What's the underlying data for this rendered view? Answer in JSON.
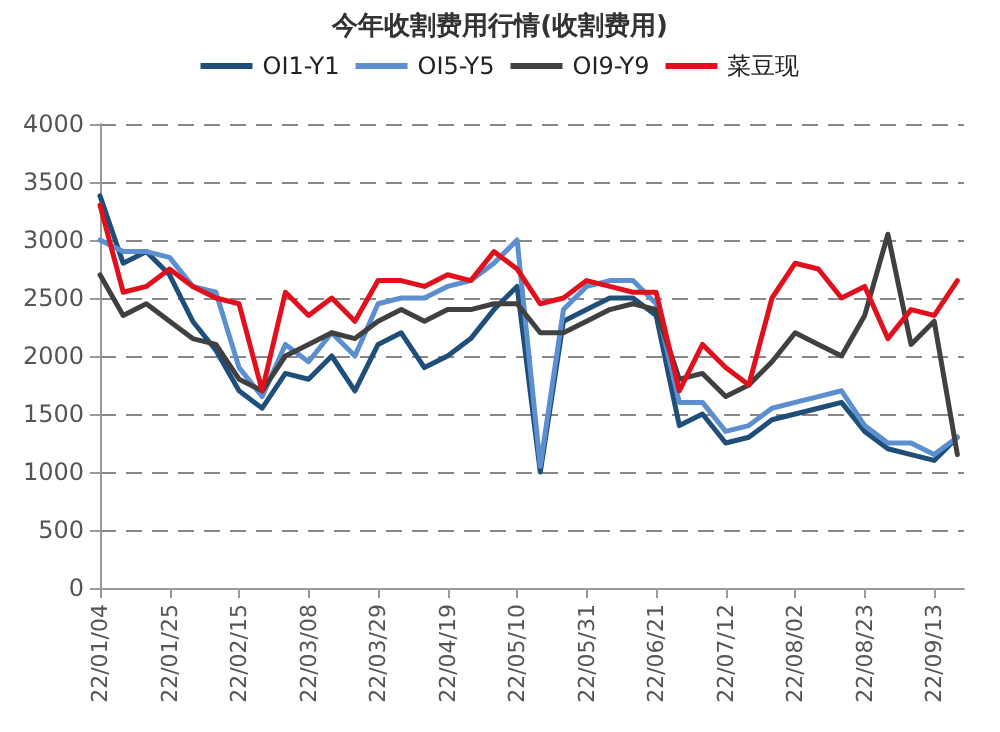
{
  "chart_data": {
    "type": "line",
    "title": "今年收割费用行情(收割费用)",
    "x": [
      "--01-04",
      "--01-11",
      "--01-18",
      "--01-25",
      "--02-01",
      "--02-08",
      "--02-15",
      "--02-22",
      "--03-01",
      "--03-08",
      "--03-15",
      "--03-22",
      "--03-29",
      "--04-05",
      "--04-12",
      "--04-19",
      "--04-26",
      "--05-03",
      "--05-10",
      "--05-17",
      "--05-24",
      "--05-31",
      "--06-07",
      "--06-14",
      "--06-21",
      "--06-28",
      "--07-05",
      "--07-12",
      "--07-19",
      "--07-26",
      "--08-02",
      "--08-09",
      "--08-16",
      "--08-23",
      "--08-30",
      "--09-06",
      "--09-13",
      "--09-20"
    ],
    "series": [
      {
        "name": "OI1-Y1",
        "color": "#1f4e79",
        "values": [
          3380,
          2800,
          2900,
          2700,
          2300,
          2050,
          1700,
          1550,
          1850,
          1800,
          2000,
          1700,
          2100,
          2200,
          1900,
          2000,
          2150,
          2400,
          2600,
          1000,
          2300,
          2400,
          2500,
          2500,
          2350,
          1400,
          1500,
          1250,
          1300,
          1450,
          1500,
          1550,
          1600,
          1350,
          1200,
          1150,
          1100,
          1300
        ]
      },
      {
        "name": "OI5-Y5",
        "color": "#5b8fd0",
        "values": [
          3000,
          2900,
          2900,
          2850,
          2600,
          2550,
          1900,
          1650,
          2100,
          1950,
          2200,
          2000,
          2450,
          2500,
          2500,
          2600,
          2650,
          2800,
          3000,
          1050,
          2400,
          2600,
          2650,
          2650,
          2450,
          1600,
          1600,
          1350,
          1400,
          1550,
          1600,
          1650,
          1700,
          1400,
          1250,
          1250,
          1150,
          1300
        ]
      },
      {
        "name": "OI9-Y9",
        "color": "#404040",
        "values": [
          2700,
          2350,
          2450,
          2300,
          2150,
          2100,
          1800,
          1700,
          2000,
          2100,
          2200,
          2150,
          2300,
          2400,
          2300,
          2400,
          2400,
          2450,
          2450,
          2200,
          2200,
          2300,
          2400,
          2450,
          2400,
          1800,
          1850,
          1650,
          1750,
          1950,
          2200,
          2100,
          2000,
          2350,
          3050,
          2100,
          2300,
          1150
        ]
      },
      {
        "name": "菜豆现",
        "color": "#e0101c",
        "values": [
          3300,
          2550,
          2600,
          2750,
          2600,
          2500,
          2450,
          1700,
          2550,
          2350,
          2500,
          2300,
          2650,
          2650,
          2600,
          2700,
          2650,
          2900,
          2750,
          2450,
          2500,
          2650,
          2600,
          2550,
          2550,
          1700,
          2100,
          1900,
          1750,
          2500,
          2800,
          2750,
          2500,
          2600,
          2150,
          2400,
          2350,
          2650
        ]
      }
    ],
    "xlim": [
      "--01-04",
      "--09-22"
    ],
    "xticks": [
      {
        "value": "--01-04",
        "label": "22/01/04"
      },
      {
        "value": "--01-25",
        "label": "22/01/25"
      },
      {
        "value": "--02-15",
        "label": "22/02/15"
      },
      {
        "value": "--03-08",
        "label": "22/03/08"
      },
      {
        "value": "--03-29",
        "label": "22/03/29"
      },
      {
        "value": "--04-19",
        "label": "22/04/19"
      },
      {
        "value": "--05-10",
        "label": "22/05/10"
      },
      {
        "value": "--05-31",
        "label": "22/05/31"
      },
      {
        "value": "--06-21",
        "label": "22/06/21"
      },
      {
        "value": "--07-12",
        "label": "22/07/12"
      },
      {
        "value": "--08-02",
        "label": "22/08/02"
      },
      {
        "value": "--08-23",
        "label": "22/08/23"
      },
      {
        "value": "--09-13",
        "label": "22/09/13"
      }
    ],
    "ylim": [
      0,
      4000
    ],
    "yticks": [
      0,
      500,
      1000,
      1500,
      2000,
      2500,
      3000,
      3500,
      4000
    ],
    "grid": "y",
    "legend": "top",
    "marker": "none",
    "line_style": "solid"
  }
}
